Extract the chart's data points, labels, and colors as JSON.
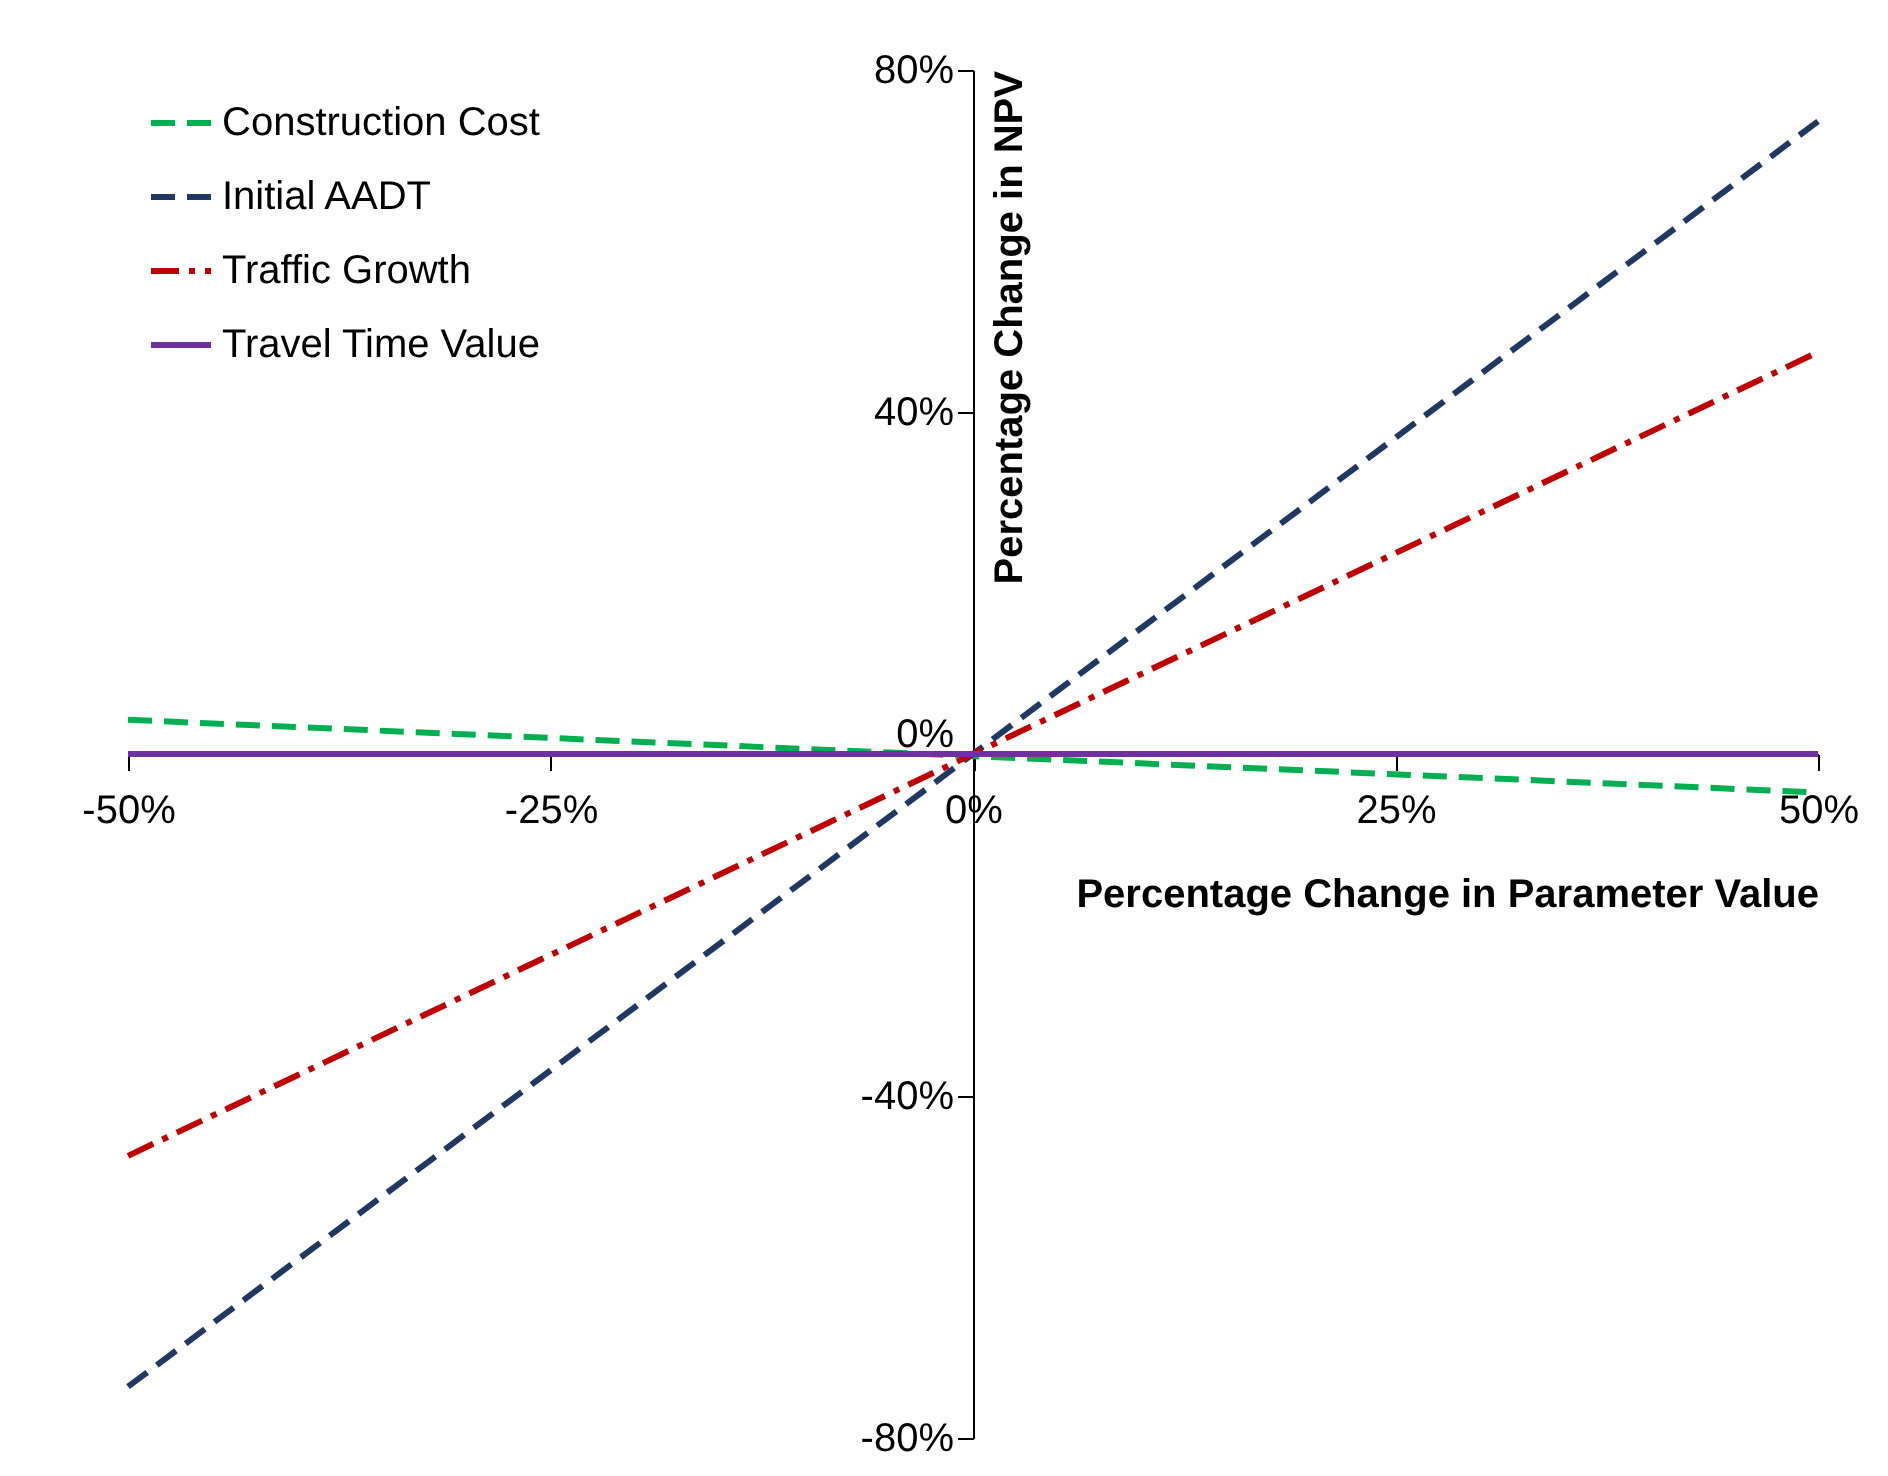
{
  "chart_data": {
    "type": "line",
    "xlabel": "Percentage Change in Parameter Value",
    "ylabel": "Percentage Change in NPV",
    "xlim": [
      -50,
      50
    ],
    "xticks": [
      {
        "value": -50,
        "label": "-50%"
      },
      {
        "value": -25,
        "label": "-25%"
      },
      {
        "value": 0,
        "label": "0%"
      },
      {
        "value": 25,
        "label": "25%"
      },
      {
        "value": 50,
        "label": "50%"
      }
    ],
    "ylim": [
      -80,
      80
    ],
    "yticks": [
      {
        "value": -80,
        "label": "-80%"
      },
      {
        "value": -40,
        "label": "-40%"
      },
      {
        "value": 0,
        "label": "0%"
      },
      {
        "value": 40,
        "label": "40%"
      },
      {
        "value": 80,
        "label": "80%"
      }
    ],
    "x": [
      -50,
      50
    ],
    "series": [
      {
        "name": "Construction Cost",
        "color": "#00b050",
        "line_style": "dashed",
        "values": [
          4,
          -4.5
        ]
      },
      {
        "name": "Initial AADT",
        "color": "#1f3864",
        "line_style": "dashed",
        "values": [
          -74,
          74
        ]
      },
      {
        "name": "Traffic Growth",
        "color": "#c00000",
        "line_style": "dashdot",
        "values": [
          -47,
          47
        ]
      },
      {
        "name": "Travel Time Value",
        "color": "#7030a0",
        "line_style": "solid",
        "values": [
          0,
          0
        ]
      }
    ],
    "grid": false,
    "legend": "top left"
  }
}
